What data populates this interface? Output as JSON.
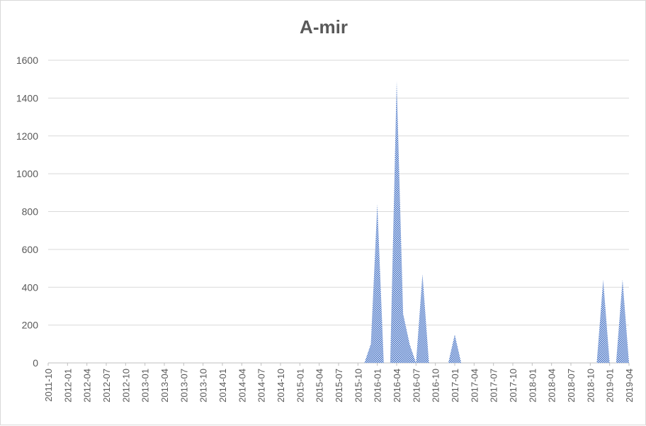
{
  "chart_data": {
    "type": "area",
    "title": "A-mir",
    "xlabel": "",
    "ylabel": "",
    "ylim": [
      0,
      1600
    ],
    "yticks": [
      0,
      200,
      400,
      600,
      800,
      1000,
      1200,
      1400,
      1600
    ],
    "grid": true,
    "legend": "none",
    "x_start": "2011-10",
    "x_end": "2019-04",
    "tick_labels": [
      "2011-10",
      "2012-01",
      "2012-04",
      "2012-07",
      "2012-10",
      "2013-01",
      "2013-04",
      "2013-07",
      "2013-10",
      "2014-01",
      "2014-04",
      "2014-07",
      "2014-10",
      "2015-01",
      "2015-04",
      "2015-07",
      "2015-10",
      "2016-01",
      "2016-04",
      "2016-07",
      "2016-10",
      "2017-01",
      "2017-04",
      "2017-07",
      "2017-10",
      "2018-01",
      "2018-04",
      "2018-07",
      "2018-10",
      "2019-01",
      "2019-04"
    ],
    "colors": {
      "fill": "#4472c4",
      "grid": "#d9d9d9",
      "text": "#595959"
    },
    "series": [
      {
        "x": [
          "2011-10",
          "2011-11",
          "2011-12",
          "2012-01",
          "2012-02",
          "2012-03",
          "2012-04",
          "2012-05",
          "2012-06",
          "2012-07",
          "2012-08",
          "2012-09",
          "2012-10",
          "2012-11",
          "2012-12",
          "2013-01",
          "2013-02",
          "2013-03",
          "2013-04",
          "2013-05",
          "2013-06",
          "2013-07",
          "2013-08",
          "2013-09",
          "2013-10",
          "2013-11",
          "2013-12",
          "2014-01",
          "2014-02",
          "2014-03",
          "2014-04",
          "2014-05",
          "2014-06",
          "2014-07",
          "2014-08",
          "2014-09",
          "2014-10",
          "2014-11",
          "2014-12",
          "2015-01",
          "2015-02",
          "2015-03",
          "2015-04",
          "2015-05",
          "2015-06",
          "2015-07",
          "2015-08",
          "2015-09",
          "2015-10",
          "2015-11",
          "2015-12",
          "2016-01",
          "2016-02",
          "2016-03",
          "2016-04",
          "2016-05",
          "2016-06",
          "2016-07",
          "2016-08",
          "2016-09",
          "2016-10",
          "2016-11",
          "2016-12",
          "2017-01",
          "2017-02",
          "2017-03",
          "2017-04",
          "2017-05",
          "2017-06",
          "2017-07",
          "2017-08",
          "2017-09",
          "2017-10",
          "2017-11",
          "2017-12",
          "2018-01",
          "2018-02",
          "2018-03",
          "2018-04",
          "2018-05",
          "2018-06",
          "2018-07",
          "2018-08",
          "2018-09",
          "2018-10",
          "2018-11",
          "2018-12",
          "2019-01",
          "2019-02",
          "2019-03",
          "2019-04"
        ],
        "values": [
          0,
          0,
          0,
          0,
          0,
          0,
          0,
          0,
          0,
          0,
          0,
          0,
          0,
          0,
          0,
          0,
          0,
          0,
          0,
          0,
          0,
          0,
          0,
          0,
          0,
          0,
          0,
          0,
          0,
          0,
          0,
          0,
          0,
          0,
          0,
          0,
          0,
          0,
          0,
          0,
          0,
          0,
          0,
          0,
          0,
          0,
          0,
          0,
          0,
          0,
          100,
          840,
          0,
          0,
          1490,
          260,
          100,
          0,
          470,
          0,
          0,
          0,
          0,
          150,
          0,
          0,
          0,
          0,
          0,
          0,
          0,
          0,
          0,
          0,
          0,
          0,
          0,
          0,
          0,
          0,
          0,
          0,
          0,
          0,
          0,
          0,
          440,
          0,
          0,
          440,
          0
        ]
      }
    ]
  }
}
